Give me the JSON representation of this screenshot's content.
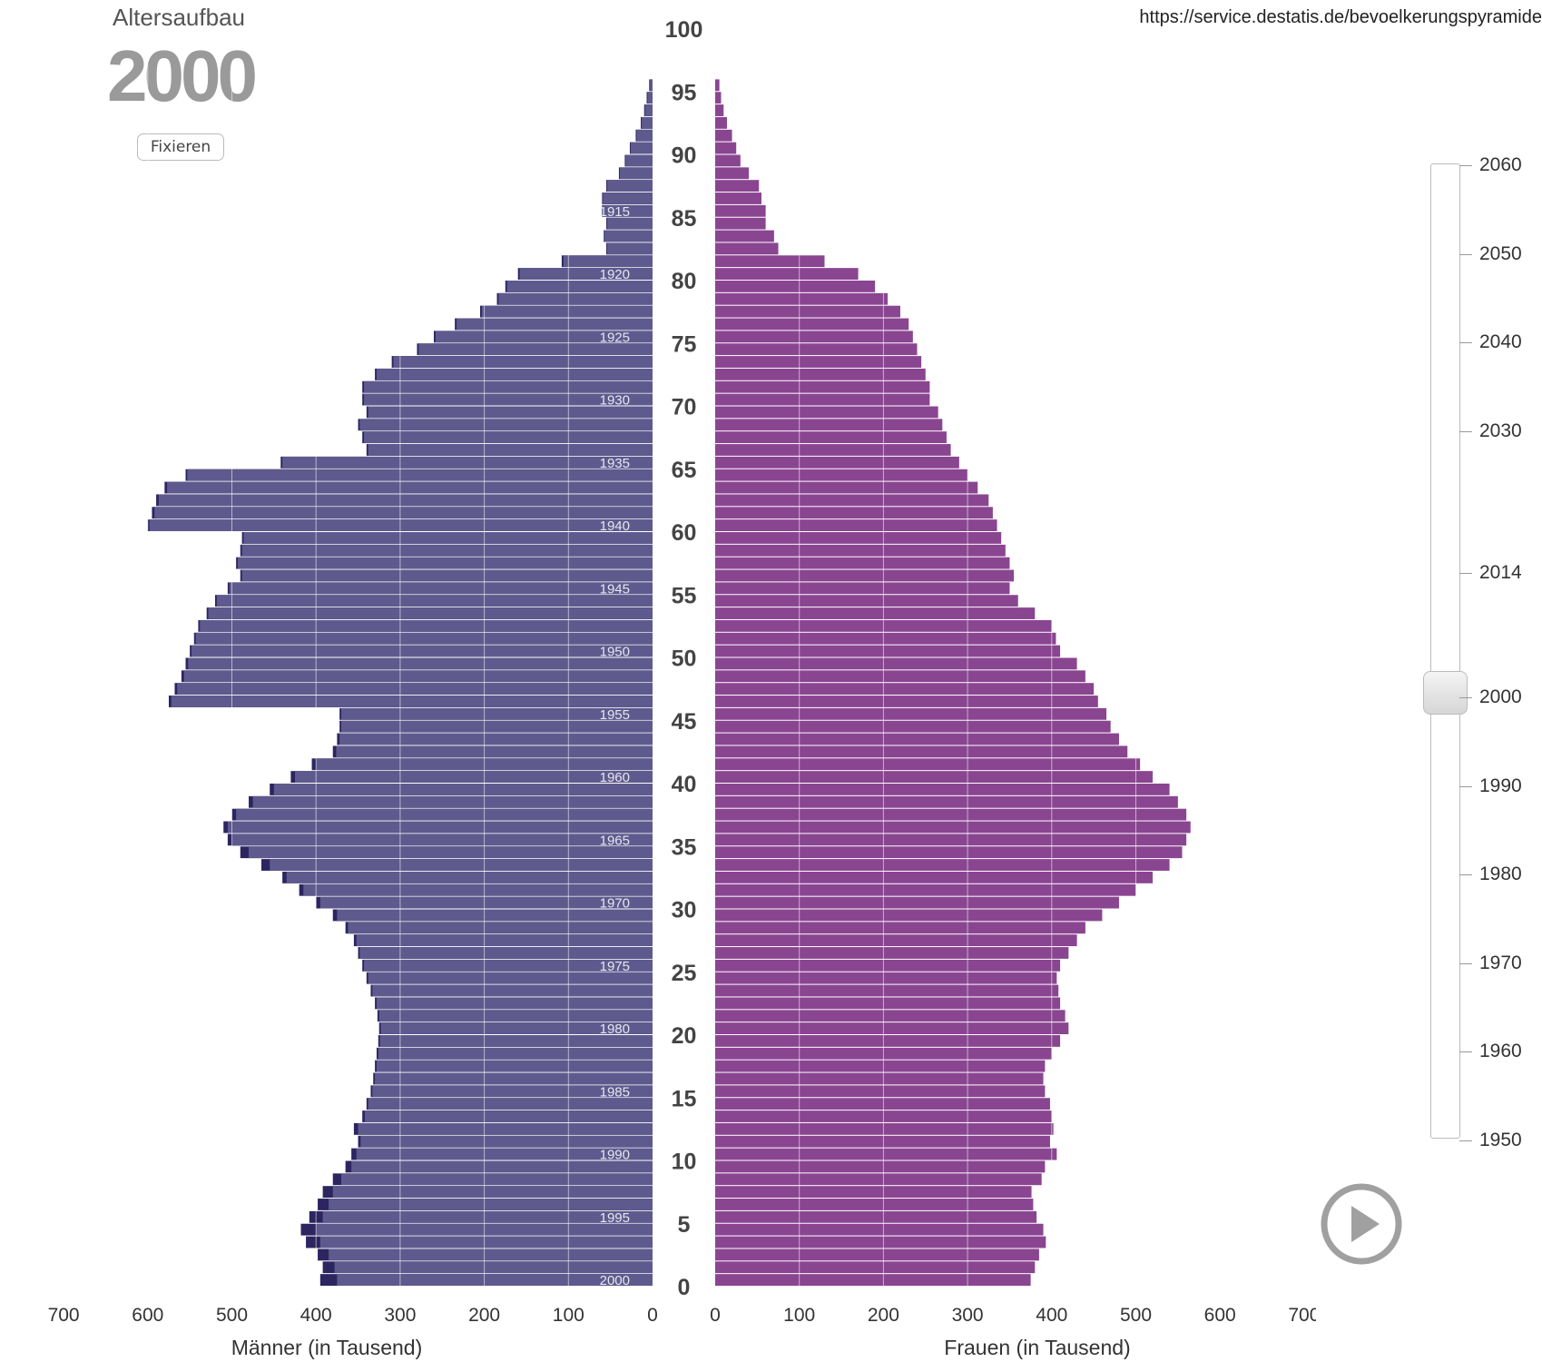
{
  "header": {
    "title": "Altersaufbau",
    "year": "2000",
    "fix_button": "Fixieren",
    "source": "https://service.destatis.de/bevoelkerungspyramide"
  },
  "slider": {
    "years": [
      "2060",
      "2050",
      "2040",
      "2030",
      "2014",
      "2000",
      "1990",
      "1980",
      "1970",
      "1960",
      "1950"
    ],
    "selected": "2000"
  },
  "colors": {
    "men": "#5e5a8e",
    "men_excess": "#2c2560",
    "women": "#8a4591",
    "women_excess": "#5e1663",
    "grid": "#ffffff",
    "year_label": "#9a9a9a"
  },
  "icons": {
    "play": "play-circle-icon"
  },
  "chart_data": {
    "type": "bar",
    "orientation": "horizontal",
    "title": "Altersaufbau 2000",
    "ages": [
      0,
      1,
      2,
      3,
      4,
      5,
      6,
      7,
      8,
      9,
      10,
      11,
      12,
      13,
      14,
      15,
      16,
      17,
      18,
      19,
      20,
      21,
      22,
      23,
      24,
      25,
      26,
      27,
      28,
      29,
      30,
      31,
      32,
      33,
      34,
      35,
      36,
      37,
      38,
      39,
      40,
      41,
      42,
      43,
      44,
      45,
      46,
      47,
      48,
      49,
      50,
      51,
      52,
      53,
      54,
      55,
      56,
      57,
      58,
      59,
      60,
      61,
      62,
      63,
      64,
      65,
      66,
      67,
      68,
      69,
      70,
      71,
      72,
      73,
      74,
      75,
      76,
      77,
      78,
      79,
      80,
      81,
      82,
      83,
      84,
      85,
      86,
      87,
      88,
      89,
      90,
      91,
      92,
      93,
      94,
      95
    ],
    "men": [
      395,
      392,
      398,
      412,
      418,
      408,
      398,
      392,
      380,
      365,
      358,
      350,
      355,
      345,
      340,
      335,
      332,
      330,
      328,
      326,
      325,
      327,
      330,
      335,
      340,
      345,
      350,
      355,
      365,
      380,
      400,
      420,
      440,
      465,
      490,
      505,
      510,
      500,
      480,
      455,
      430,
      405,
      380,
      375,
      372,
      372,
      575,
      568,
      560,
      555,
      550,
      545,
      540,
      530,
      520,
      505,
      490,
      495,
      490,
      488,
      600,
      595,
      590,
      580,
      555,
      442,
      340,
      345,
      350,
      340,
      345,
      345,
      330,
      310,
      280,
      260,
      235,
      205,
      185,
      175,
      160,
      108,
      55,
      58,
      55,
      60,
      60,
      55,
      40,
      33,
      27,
      20,
      14,
      10,
      7,
      4
    ],
    "men_excess": [
      0,
      0,
      0,
      0,
      0,
      0,
      0,
      0,
      0,
      0,
      0,
      0,
      0,
      0,
      0,
      0,
      0,
      0,
      0,
      0,
      0,
      0,
      0,
      0,
      0,
      0,
      0,
      0,
      0,
      0,
      0,
      0,
      0,
      0,
      0,
      0,
      0,
      0,
      0,
      0,
      0,
      0,
      0,
      0,
      0,
      0,
      0,
      0,
      0,
      0,
      0,
      0,
      0,
      0,
      0,
      0,
      0,
      0,
      0,
      0,
      0,
      0,
      0,
      0,
      0,
      0,
      0,
      0,
      0,
      0,
      0,
      0,
      0,
      0,
      0,
      0,
      0,
      0,
      0,
      0,
      0,
      0,
      0,
      0,
      0,
      0,
      0,
      0,
      0,
      0,
      0,
      0,
      0,
      0,
      0,
      0
    ],
    "women": [
      375,
      380,
      385,
      393,
      390,
      382,
      378,
      376,
      388,
      392,
      406,
      398,
      402,
      400,
      398,
      392,
      390,
      392,
      400,
      410,
      420,
      416,
      410,
      408,
      406,
      410,
      420,
      430,
      440,
      460,
      480,
      500,
      520,
      540,
      555,
      560,
      565,
      560,
      550,
      540,
      520,
      505,
      490,
      480,
      470,
      465,
      455,
      450,
      440,
      430,
      410,
      405,
      400,
      380,
      360,
      350,
      355,
      350,
      345,
      340,
      335,
      330,
      325,
      312,
      300,
      290,
      280,
      275,
      270,
      265,
      255,
      255,
      250,
      245,
      240,
      235,
      230,
      220,
      205,
      190,
      170,
      130,
      75,
      70,
      60,
      60,
      55,
      52,
      40,
      30,
      25,
      20,
      14,
      10,
      7,
      5
    ],
    "women_excess": [
      0,
      0,
      0,
      0,
      0,
      0,
      0,
      0,
      0,
      0,
      0,
      0,
      0,
      0,
      0,
      0,
      0,
      0,
      0,
      0,
      0,
      0,
      0,
      0,
      0,
      0,
      0,
      0,
      0,
      0,
      0,
      0,
      0,
      0,
      0,
      0,
      0,
      0,
      0,
      0,
      0,
      0,
      0,
      0,
      0,
      0,
      0,
      0,
      0,
      0,
      0,
      0,
      0,
      0,
      0,
      0,
      0,
      0,
      0,
      0,
      0,
      0,
      0,
      0,
      0,
      0,
      0,
      0,
      0,
      0,
      0,
      0,
      0,
      0,
      0,
      0,
      0,
      0,
      0,
      0,
      0,
      0,
      0,
      0,
      0,
      0,
      0,
      0,
      0,
      0,
      0,
      0,
      0,
      0,
      0,
      0
    ],
    "men_current": [
      375,
      378,
      385,
      395,
      400,
      392,
      385,
      380,
      370,
      358,
      352,
      347,
      350,
      342,
      338,
      333,
      330,
      328,
      326,
      324,
      323,
      325,
      328,
      333,
      338,
      343,
      348,
      352,
      362,
      375,
      395,
      415,
      435,
      455,
      480,
      500,
      505,
      495,
      475,
      450,
      425,
      400,
      376,
      372,
      370,
      370,
      572,
      565,
      557,
      552,
      548,
      543,
      538,
      528,
      518,
      503,
      488,
      493,
      488,
      486,
      598,
      592,
      587,
      577,
      553,
      440,
      338,
      343,
      348,
      338,
      343,
      343,
      328,
      308,
      278,
      258,
      233,
      203,
      183,
      173,
      158,
      106,
      54,
      57,
      54,
      59,
      59,
      54,
      39,
      32,
      26,
      19,
      13,
      9,
      6,
      3
    ],
    "men_excess_total": [
      395,
      392,
      398,
      412,
      418,
      408,
      398,
      392,
      380,
      365,
      358,
      350,
      355,
      345,
      340,
      335,
      332,
      330,
      328,
      326,
      325,
      327,
      330,
      335,
      340,
      345,
      350,
      355,
      365,
      380,
      400,
      420,
      440,
      465,
      490,
      505,
      510,
      500,
      480,
      455,
      430,
      405,
      380,
      375,
      372,
      372,
      575,
      568,
      560,
      555,
      550,
      545,
      540,
      530,
      520,
      505,
      490,
      495,
      490,
      488,
      600,
      595,
      590,
      580,
      555,
      442,
      340,
      345,
      350,
      340,
      345,
      345,
      330,
      310,
      280,
      260,
      235,
      205,
      185,
      175,
      160,
      108,
      55,
      58,
      55,
      60,
      60,
      55,
      40,
      33,
      27,
      20,
      14,
      10,
      7,
      4
    ],
    "women_excess_total": [
      375,
      380,
      385,
      393,
      390,
      382,
      378,
      376,
      388,
      392,
      406,
      398,
      402,
      400,
      398,
      392,
      390,
      392,
      400,
      410,
      420,
      416,
      410,
      408,
      406,
      410,
      420,
      430,
      440,
      460,
      480,
      500,
      520,
      540,
      555,
      560,
      565,
      560,
      550,
      540,
      520,
      505,
      490,
      480,
      470,
      465,
      455,
      450,
      440,
      430,
      410,
      405,
      400,
      380,
      360,
      350,
      355,
      350,
      345,
      340,
      335,
      330,
      325,
      312,
      300,
      290,
      280,
      275,
      270,
      265,
      255,
      255,
      250,
      245,
      240,
      235,
      230,
      220,
      205,
      190,
      170,
      130,
      75,
      70,
      60,
      60,
      55,
      52,
      40,
      30,
      25,
      20,
      14,
      10,
      7,
      5
    ],
    "age_ticks": [
      0,
      5,
      10,
      15,
      20,
      25,
      30,
      35,
      40,
      45,
      50,
      55,
      60,
      65,
      70,
      75,
      80,
      85,
      90,
      95,
      100
    ],
    "birth_year_labels": [
      "2000",
      "1995",
      "1990",
      "1985",
      "1980",
      "1975",
      "1970",
      "1965",
      "1960",
      "1955",
      "1950",
      "1945",
      "1940",
      "1935",
      "1930",
      "1925",
      "1920",
      "1915"
    ],
    "x_ticks": [
      0,
      100,
      200,
      300,
      400,
      500,
      600,
      700
    ],
    "xlim": [
      0,
      700
    ],
    "men_label": "Männer (in Tausend)",
    "women_label": "Frauen (in Tausend)",
    "series": [
      {
        "name": "Männer (in Tausend)"
      },
      {
        "name": "Frauen (in Tausend)"
      }
    ],
    "grid": true
  }
}
